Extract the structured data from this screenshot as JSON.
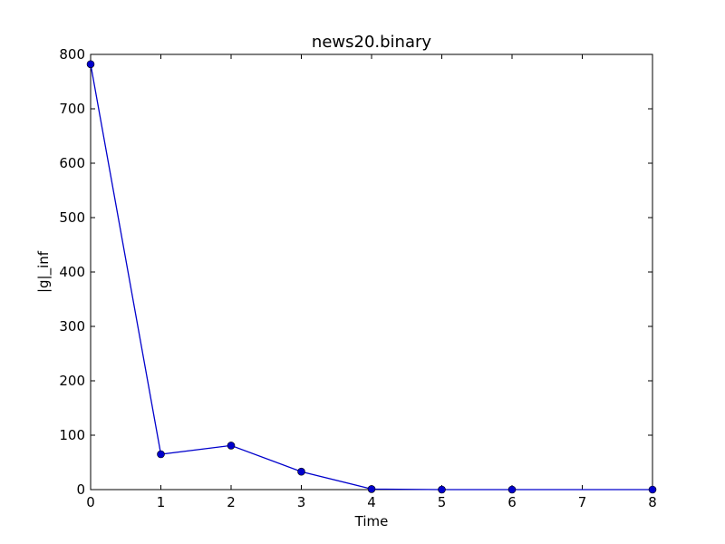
{
  "chart_data": {
    "type": "line",
    "title": "news20.binary",
    "xlabel": "Time",
    "ylabel": "|g|_inf",
    "xlim": [
      0,
      8
    ],
    "ylim": [
      0,
      800
    ],
    "xticks": [
      "0",
      "1",
      "2",
      "3",
      "4",
      "5",
      "6",
      "7",
      "8"
    ],
    "yticks": [
      "0",
      "100",
      "200",
      "300",
      "400",
      "500",
      "600",
      "700",
      "800"
    ],
    "grid": false,
    "series": [
      {
        "color": "#0000cc",
        "marker": "circle",
        "x": [
          0,
          1,
          2,
          3,
          4,
          5,
          6,
          8
        ],
        "y": [
          782,
          65,
          81,
          33,
          1,
          0,
          0,
          0
        ]
      }
    ]
  }
}
